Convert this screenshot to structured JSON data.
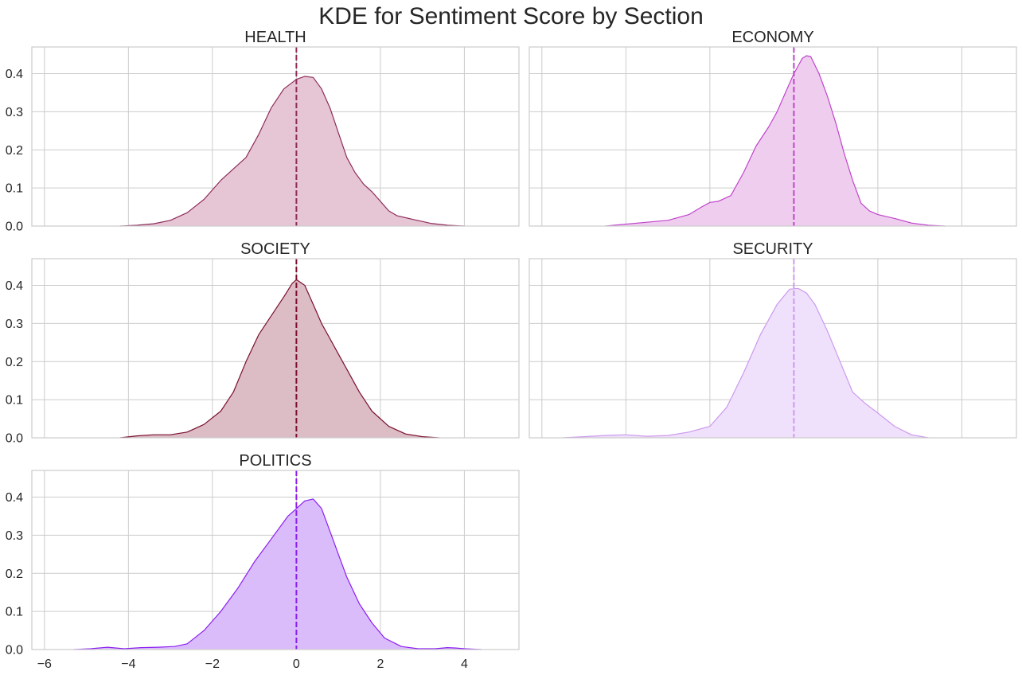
{
  "figure": {
    "title": "KDE for Sentiment Score by Section"
  },
  "chart_data": [
    {
      "type": "area",
      "title": "HEALTH",
      "xlim": [
        -6.3,
        5.3
      ],
      "ylim": [
        0,
        0.47
      ],
      "xticks": [
        -6,
        -4,
        -2,
        0,
        2,
        4
      ],
      "xtick_labels": [
        "−6",
        "−4",
        "−2",
        "0",
        "2",
        "4"
      ],
      "yticks": [
        0,
        0.1,
        0.2,
        0.3,
        0.4
      ],
      "ytick_labels": [
        "0.0",
        "0.1",
        "0.2",
        "0.3",
        "0.4"
      ],
      "show_xtick_labels": false,
      "show_ytick_labels": true,
      "mean_line_x": 0,
      "grid": true,
      "color": "#8e2c5a",
      "fill_color": "#e6c5d4",
      "x": [
        -4.2,
        -3.8,
        -3.4,
        -3.0,
        -2.6,
        -2.2,
        -1.8,
        -1.5,
        -1.2,
        -0.9,
        -0.6,
        -0.3,
        0.0,
        0.2,
        0.4,
        0.6,
        0.8,
        1.0,
        1.2,
        1.4,
        1.6,
        1.8,
        2.0,
        2.2,
        2.4,
        2.8,
        3.2,
        3.6,
        4.0
      ],
      "y": [
        0.0,
        0.002,
        0.006,
        0.015,
        0.035,
        0.07,
        0.12,
        0.15,
        0.18,
        0.24,
        0.31,
        0.36,
        0.385,
        0.393,
        0.39,
        0.36,
        0.31,
        0.245,
        0.18,
        0.14,
        0.11,
        0.09,
        0.065,
        0.04,
        0.027,
        0.017,
        0.007,
        0.002,
        0.0
      ]
    },
    {
      "type": "area",
      "title": "ECONOMY",
      "xlim": [
        -6.3,
        5.3
      ],
      "ylim": [
        0,
        0.47
      ],
      "xticks": [
        -6,
        -4,
        -2,
        0,
        2,
        4
      ],
      "xtick_labels": [
        "−6",
        "−4",
        "−2",
        "0",
        "2",
        "4"
      ],
      "yticks": [
        0,
        0.1,
        0.2,
        0.3,
        0.4
      ],
      "ytick_labels": [
        "0.0",
        "0.1",
        "0.2",
        "0.3",
        "0.4"
      ],
      "show_xtick_labels": false,
      "show_ytick_labels": false,
      "mean_line_x": 0,
      "grid": true,
      "color": "#c044cc",
      "fill_color": "#efcdee",
      "x": [
        -4.5,
        -4.0,
        -3.5,
        -3.0,
        -2.5,
        -2.2,
        -2.0,
        -1.8,
        -1.5,
        -1.2,
        -0.9,
        -0.6,
        -0.4,
        -0.2,
        0.0,
        0.2,
        0.3,
        0.4,
        0.6,
        0.8,
        1.0,
        1.2,
        1.4,
        1.6,
        1.8,
        2.0,
        2.4,
        2.8,
        3.2,
        3.6
      ],
      "y": [
        0.0,
        0.005,
        0.01,
        0.015,
        0.03,
        0.05,
        0.062,
        0.065,
        0.08,
        0.14,
        0.21,
        0.26,
        0.3,
        0.35,
        0.4,
        0.44,
        0.447,
        0.445,
        0.4,
        0.34,
        0.27,
        0.19,
        0.12,
        0.06,
        0.04,
        0.03,
        0.02,
        0.008,
        0.002,
        0.0
      ]
    },
    {
      "type": "area",
      "title": "SOCIETY",
      "xlim": [
        -6.3,
        5.3
      ],
      "ylim": [
        0,
        0.47
      ],
      "xticks": [
        -6,
        -4,
        -2,
        0,
        2,
        4
      ],
      "xtick_labels": [
        "−6",
        "−4",
        "−2",
        "0",
        "2",
        "4"
      ],
      "yticks": [
        0,
        0.1,
        0.2,
        0.3,
        0.4
      ],
      "ytick_labels": [
        "0.0",
        "0.1",
        "0.2",
        "0.3",
        "0.4"
      ],
      "show_xtick_labels": false,
      "show_ytick_labels": true,
      "mean_line_x": 0,
      "grid": true,
      "color": "#7a0f2e",
      "fill_color": "#dcbcc5",
      "x": [
        -4.2,
        -3.8,
        -3.4,
        -3.0,
        -2.6,
        -2.2,
        -1.8,
        -1.5,
        -1.2,
        -0.9,
        -0.6,
        -0.3,
        -0.1,
        0.0,
        0.2,
        0.4,
        0.6,
        0.8,
        1.0,
        1.2,
        1.5,
        1.8,
        2.2,
        2.6,
        3.0,
        3.4
      ],
      "y": [
        0.0,
        0.005,
        0.008,
        0.008,
        0.015,
        0.035,
        0.07,
        0.12,
        0.2,
        0.27,
        0.32,
        0.37,
        0.405,
        0.415,
        0.4,
        0.35,
        0.3,
        0.26,
        0.22,
        0.18,
        0.12,
        0.07,
        0.03,
        0.01,
        0.003,
        0.0
      ]
    },
    {
      "type": "area",
      "title": "SECURITY",
      "xlim": [
        -6.3,
        5.3
      ],
      "ylim": [
        0,
        0.47
      ],
      "xticks": [
        -6,
        -4,
        -2,
        0,
        2,
        4
      ],
      "xtick_labels": [
        "−6",
        "−4",
        "−2",
        "0",
        "2",
        "4"
      ],
      "yticks": [
        0,
        0.1,
        0.2,
        0.3,
        0.4
      ],
      "ytick_labels": [
        "0.0",
        "0.1",
        "0.2",
        "0.3",
        "0.4"
      ],
      "show_xtick_labels": false,
      "show_ytick_labels": false,
      "mean_line_x": 0,
      "grid": true,
      "color": "#cc99ee",
      "fill_color": "#efe1fb",
      "x": [
        -5.5,
        -5.0,
        -4.5,
        -4.0,
        -3.5,
        -3.0,
        -2.5,
        -2.0,
        -1.6,
        -1.2,
        -0.8,
        -0.4,
        -0.1,
        0.1,
        0.3,
        0.5,
        0.8,
        1.1,
        1.4,
        1.7,
        2.0,
        2.4,
        2.8,
        3.2
      ],
      "y": [
        0.0,
        0.003,
        0.006,
        0.008,
        0.004,
        0.006,
        0.015,
        0.03,
        0.08,
        0.17,
        0.27,
        0.35,
        0.39,
        0.392,
        0.38,
        0.35,
        0.28,
        0.2,
        0.12,
        0.09,
        0.065,
        0.03,
        0.008,
        0.0
      ]
    },
    {
      "type": "area",
      "title": "POLITICS",
      "xlim": [
        -6.3,
        5.3
      ],
      "ylim": [
        0,
        0.47
      ],
      "xticks": [
        -6,
        -4,
        -2,
        0,
        2,
        4
      ],
      "xtick_labels": [
        "−6",
        "−4",
        "−2",
        "0",
        "2",
        "4"
      ],
      "yticks": [
        0,
        0.1,
        0.2,
        0.3,
        0.4
      ],
      "ytick_labels": [
        "0.0",
        "0.1",
        "0.2",
        "0.3",
        "0.4"
      ],
      "show_xtick_labels": true,
      "show_ytick_labels": true,
      "mean_line_x": 0,
      "grid": true,
      "color": "#8a1ef0",
      "fill_color": "#dbbcfb",
      "x": [
        -5.3,
        -4.9,
        -4.5,
        -4.1,
        -3.7,
        -3.3,
        -2.9,
        -2.6,
        -2.2,
        -1.8,
        -1.4,
        -1.0,
        -0.6,
        -0.2,
        0.0,
        0.2,
        0.4,
        0.6,
        0.8,
        1.0,
        1.2,
        1.5,
        1.8,
        2.1,
        2.5,
        2.9,
        3.3,
        3.6,
        3.8,
        4.0,
        4.4
      ],
      "y": [
        0.0,
        0.002,
        0.006,
        0.002,
        0.005,
        0.006,
        0.008,
        0.015,
        0.05,
        0.1,
        0.16,
        0.23,
        0.29,
        0.35,
        0.37,
        0.39,
        0.395,
        0.37,
        0.31,
        0.25,
        0.19,
        0.12,
        0.07,
        0.03,
        0.008,
        0.002,
        0.002,
        0.005,
        0.004,
        0.002,
        0.0
      ]
    }
  ]
}
